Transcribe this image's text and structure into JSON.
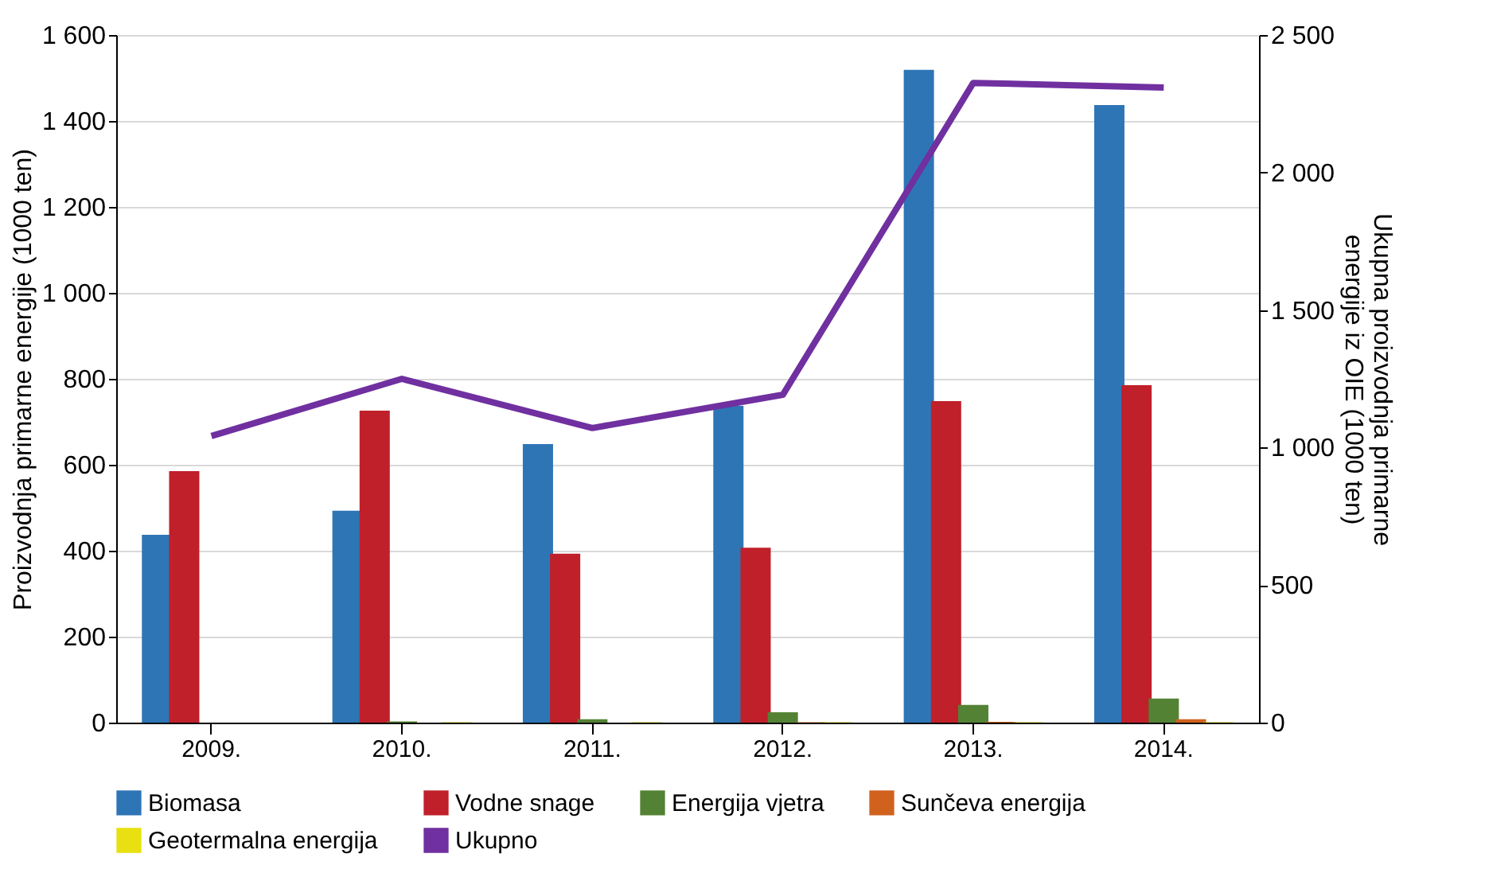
{
  "chart_data": {
    "type": "bar",
    "categories": [
      "2009.",
      "2010.",
      "2011.",
      "2012.",
      "2013.",
      "2014."
    ],
    "ylabel": "Proizvodnja primarne energije (1000 ten)",
    "y2label": "Ukupna proizvodnja primarne energije iz OIE (1000 ten)",
    "ylim": [
      0,
      1600
    ],
    "yticks": [
      {
        "value": 0,
        "label": "0"
      },
      {
        "value": 200,
        "label": "200"
      },
      {
        "value": 400,
        "label": "400"
      },
      {
        "value": 600,
        "label": "600"
      },
      {
        "value": 800,
        "label": "800"
      },
      {
        "value": 1000,
        "label": "1 000"
      },
      {
        "value": 1200,
        "label": "1 200"
      },
      {
        "value": 1400,
        "label": "1 400"
      },
      {
        "value": 1600,
        "label": "1 600"
      }
    ],
    "y2lim": [
      0,
      2500
    ],
    "y2ticks": [
      {
        "value": 0,
        "label": "0"
      },
      {
        "value": 500,
        "label": "500"
      },
      {
        "value": 1000,
        "label": "1 000"
      },
      {
        "value": 1500,
        "label": "1 500"
      },
      {
        "value": 2000,
        "label": "2 000"
      },
      {
        "value": 2500,
        "label": "2 500"
      }
    ],
    "grid": "y",
    "legend": "bottom",
    "series": [
      {
        "name": "Biomasa",
        "color": "#2e75b6",
        "values": [
          437,
          493,
          648,
          737,
          1519,
          1437
        ]
      },
      {
        "name": "Vodne snage",
        "color": "#c0202a",
        "values": [
          585,
          726,
          393,
          407,
          748,
          785
        ]
      },
      {
        "name": "Energija vjetra",
        "color": "#548235",
        "values": [
          0,
          3,
          8,
          24,
          41,
          56
        ]
      },
      {
        "name": "Sunčeva  energija",
        "color": "#d0621e",
        "values": [
          0,
          0,
          0,
          1,
          2,
          8
        ]
      },
      {
        "name": "Geotermalna energija",
        "color": "#e8e010",
        "values": [
          0,
          1,
          1,
          1,
          1,
          1
        ]
      },
      {
        "name": "Ukupno",
        "type": "line",
        "axis": "y2",
        "color": "#7030a0",
        "values": [
          1042,
          1250,
          1071,
          1192,
          2326,
          2309
        ]
      }
    ]
  }
}
